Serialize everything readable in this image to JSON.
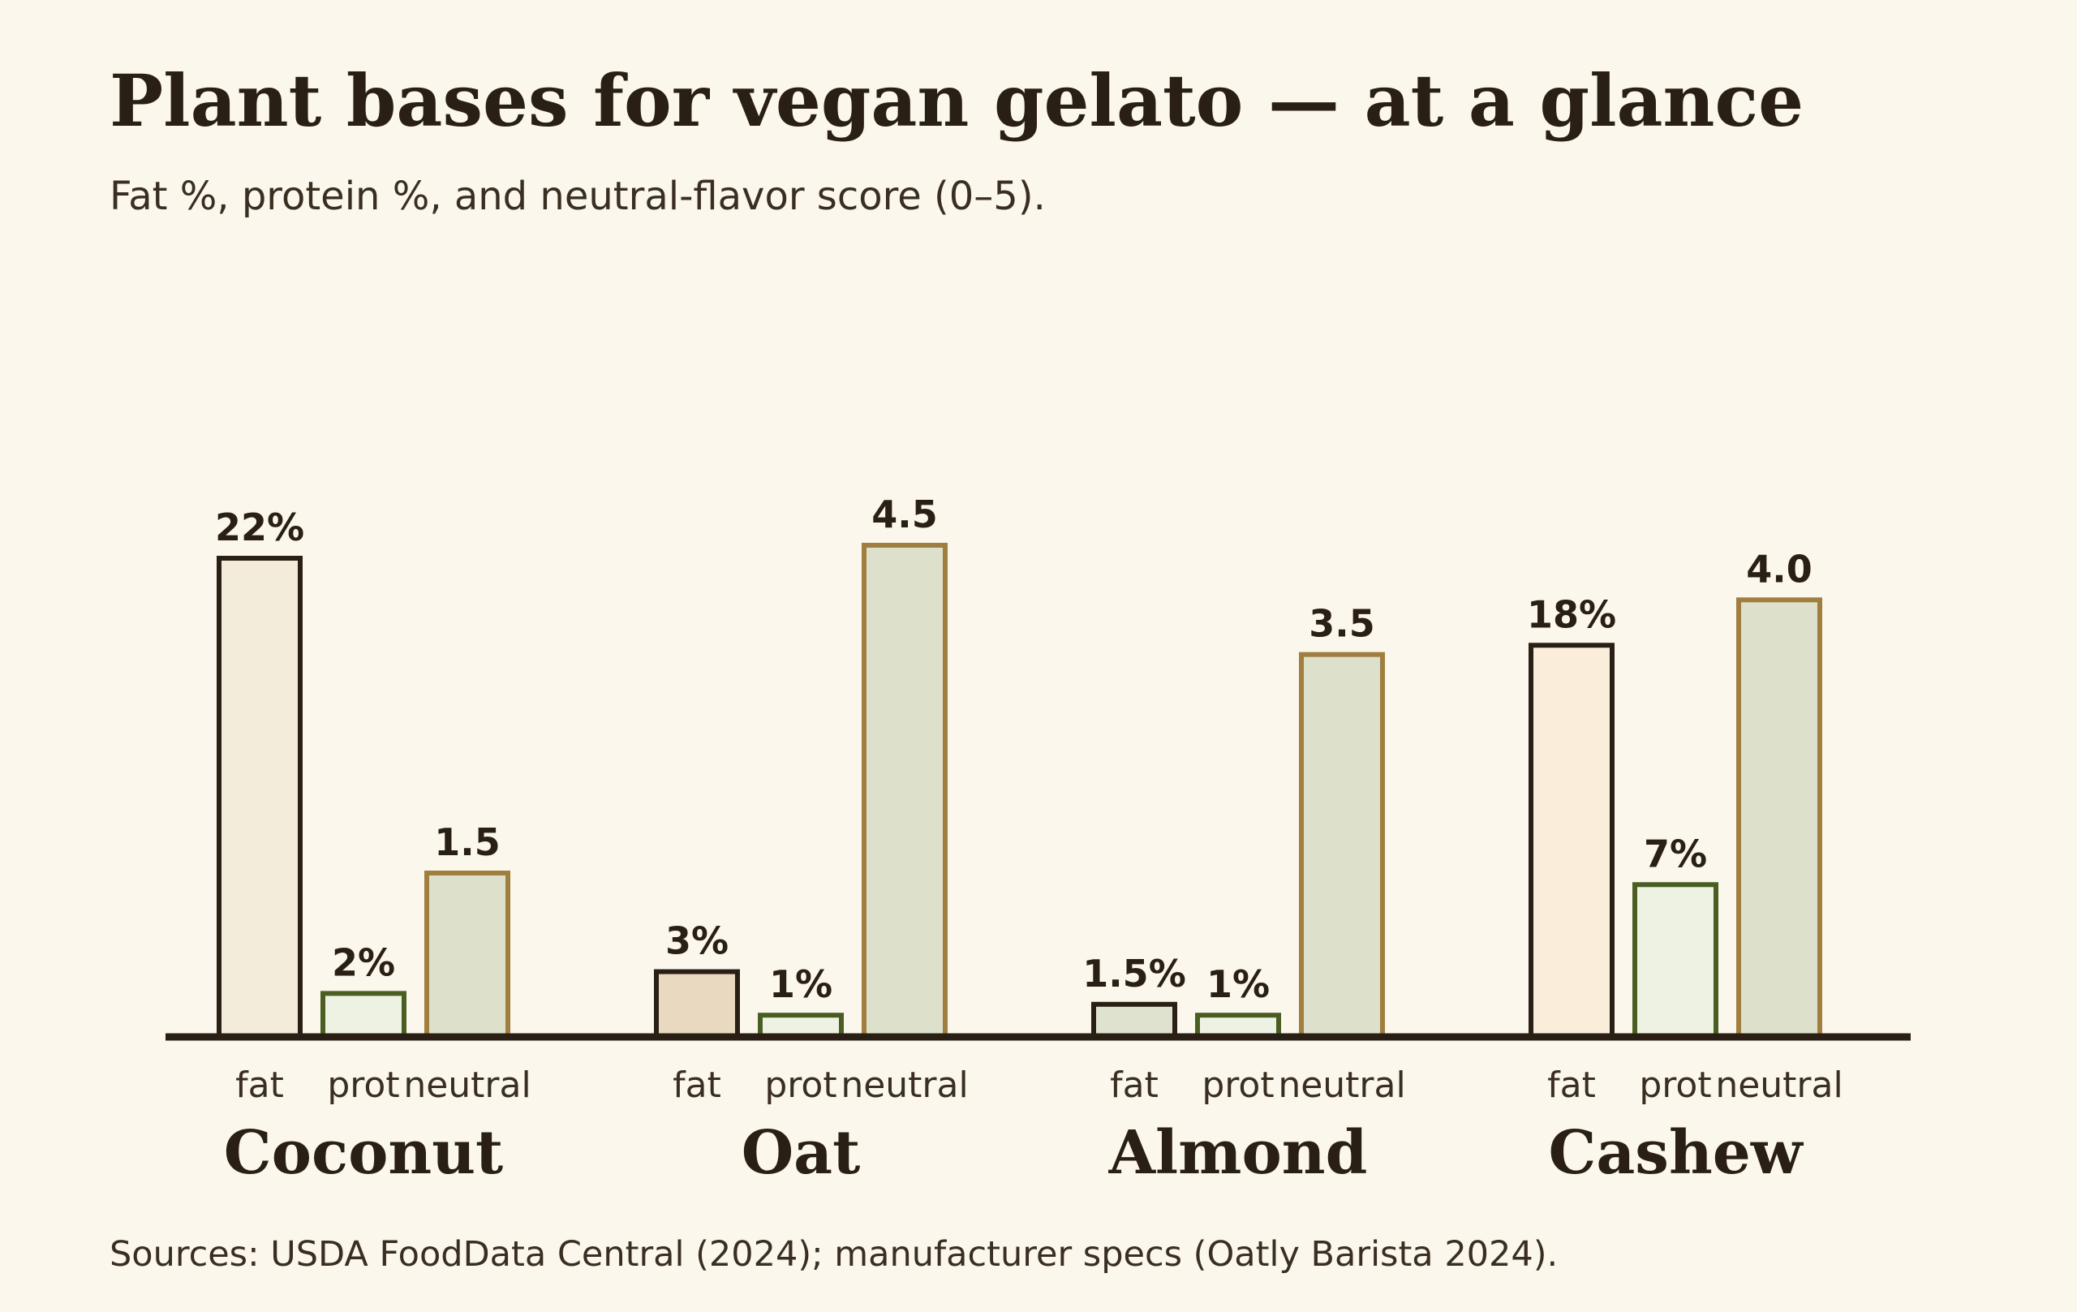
{
  "title": "Plant bases for vegan gelato — at a glance",
  "subtitle": "Fat %, protein %, and neutral-flavor score (0–5).",
  "source": "Sources: USDA FoodData Central (2024); manufacturer specs (Oatly Barista 2024).",
  "chart_data": {
    "type": "bar",
    "categories": [
      "Coconut",
      "Oat",
      "Almond",
      "Cashew"
    ],
    "metric_labels": [
      "fat",
      "prot",
      "neutral"
    ],
    "series": [
      {
        "values": [
          22,
          3,
          1.5,
          18
        ],
        "labels": [
          "22%",
          "3%",
          "1.5%",
          "18%"
        ]
      },
      {
        "values": [
          2,
          1,
          1,
          7
        ],
        "labels": [
          "2%",
          "1%",
          "1%",
          "7%"
        ]
      },
      {
        "values": [
          1.5,
          4.5,
          3.5,
          4.0
        ],
        "labels": [
          "1.5",
          "4.5",
          "3.5",
          "4.0"
        ]
      }
    ],
    "colors": {
      "fat_fills": [
        "#f4ecda",
        "#e8d9c0",
        "#dfe2cf",
        "#faeedb"
      ],
      "fat_stroke": "#2a1f14",
      "prot_fill": "#eef2e2",
      "prot_stroke": "#4a5e23",
      "neutral_fill": "#dde1cb",
      "neutral_stroke": "#a07e40",
      "baseline": "#2a1f14"
    },
    "grid": false,
    "legend": "none"
  }
}
